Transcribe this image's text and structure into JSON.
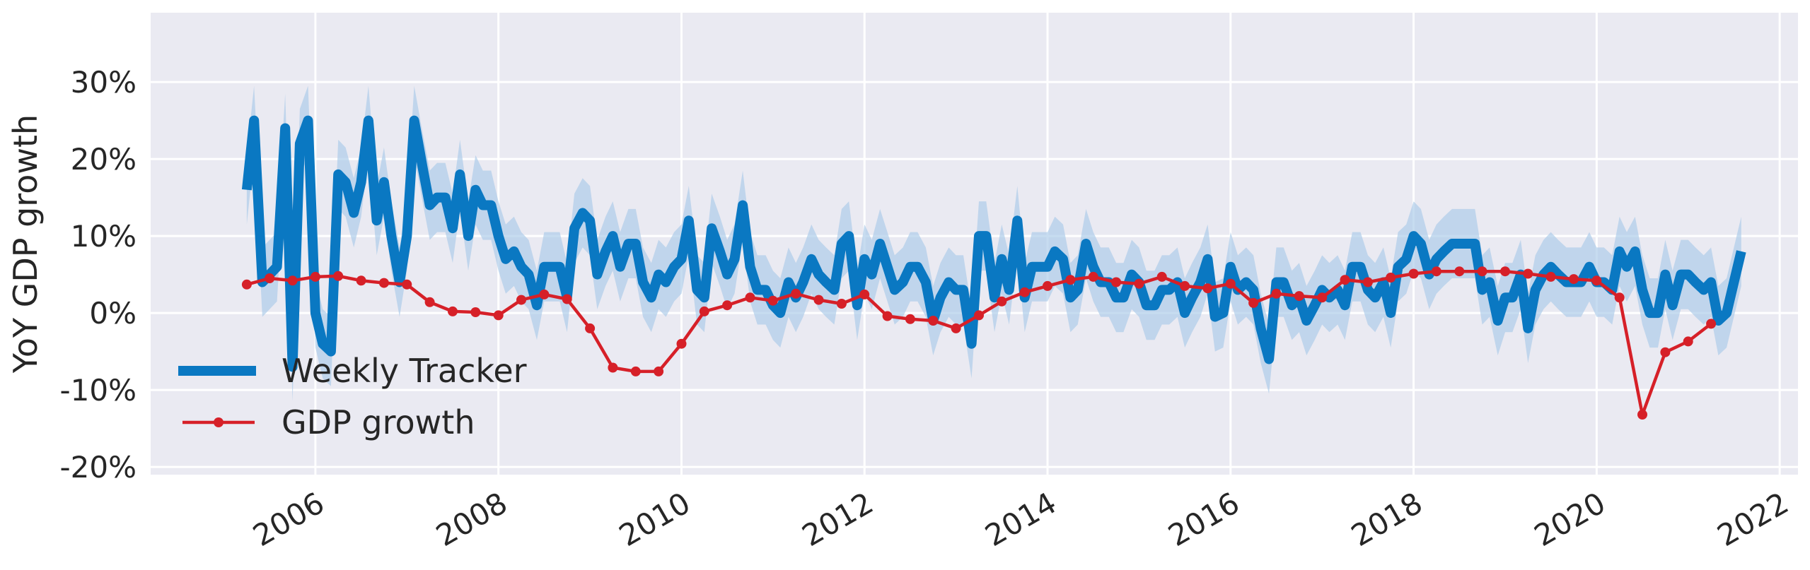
{
  "chart_data": {
    "type": "line",
    "title": "",
    "xlabel": "",
    "ylabel": "YoY GDP growth",
    "xlim": [
      2004.2,
      2022.2
    ],
    "ylim": [
      -21,
      39
    ],
    "x_ticks": [
      2006,
      2008,
      2010,
      2012,
      2014,
      2016,
      2018,
      2020,
      2022
    ],
    "x_tick_labels": [
      "2006",
      "2008",
      "2010",
      "2012",
      "2014",
      "2016",
      "2018",
      "2020",
      "2022"
    ],
    "y_ticks": [
      -20,
      -10,
      0,
      10,
      20,
      30
    ],
    "y_tick_labels": [
      "-20%",
      "-10%",
      "0%",
      "10%",
      "20%",
      "30%"
    ],
    "grid": true,
    "legend_position": "lower-left",
    "colors": {
      "background": "#eaeaf2",
      "grid": "#ffffff",
      "weekly": "#0a78c2",
      "band": "#a9c9e8",
      "gdp": "#d62028"
    },
    "series": [
      {
        "name": "Weekly Tracker",
        "style": "thick-line-with-band",
        "band_halfwidth": 4.5,
        "points": [
          [
            2005.25,
            16
          ],
          [
            2005.33,
            25
          ],
          [
            2005.42,
            4
          ],
          [
            2005.5,
            5
          ],
          [
            2005.58,
            6
          ],
          [
            2005.67,
            24
          ],
          [
            2005.75,
            -7
          ],
          [
            2005.83,
            22
          ],
          [
            2005.92,
            25
          ],
          [
            2006.0,
            0
          ],
          [
            2006.08,
            -4
          ],
          [
            2006.17,
            -5
          ],
          [
            2006.25,
            18
          ],
          [
            2006.33,
            17
          ],
          [
            2006.42,
            13
          ],
          [
            2006.5,
            17
          ],
          [
            2006.58,
            25
          ],
          [
            2006.67,
            12
          ],
          [
            2006.75,
            17
          ],
          [
            2006.83,
            10
          ],
          [
            2006.92,
            4
          ],
          [
            2007.0,
            10
          ],
          [
            2007.08,
            25
          ],
          [
            2007.17,
            19
          ],
          [
            2007.25,
            14
          ],
          [
            2007.33,
            15
          ],
          [
            2007.42,
            15
          ],
          [
            2007.5,
            11
          ],
          [
            2007.58,
            18
          ],
          [
            2007.67,
            10
          ],
          [
            2007.75,
            16
          ],
          [
            2007.83,
            14
          ],
          [
            2007.92,
            14
          ],
          [
            2008.0,
            10
          ],
          [
            2008.08,
            7
          ],
          [
            2008.17,
            8
          ],
          [
            2008.25,
            6
          ],
          [
            2008.33,
            5
          ],
          [
            2008.42,
            1
          ],
          [
            2008.5,
            6
          ],
          [
            2008.58,
            6
          ],
          [
            2008.67,
            6
          ],
          [
            2008.75,
            2
          ],
          [
            2008.83,
            11
          ],
          [
            2008.92,
            13
          ],
          [
            2009.0,
            12
          ],
          [
            2009.08,
            5
          ],
          [
            2009.17,
            8
          ],
          [
            2009.25,
            10
          ],
          [
            2009.33,
            6
          ],
          [
            2009.42,
            9
          ],
          [
            2009.5,
            9
          ],
          [
            2009.58,
            4
          ],
          [
            2009.67,
            2
          ],
          [
            2009.75,
            5
          ],
          [
            2009.83,
            4
          ],
          [
            2009.92,
            6
          ],
          [
            2010.0,
            7
          ],
          [
            2010.08,
            12
          ],
          [
            2010.17,
            3
          ],
          [
            2010.25,
            2
          ],
          [
            2010.33,
            11
          ],
          [
            2010.42,
            8
          ],
          [
            2010.5,
            5
          ],
          [
            2010.58,
            7
          ],
          [
            2010.67,
            14
          ],
          [
            2010.75,
            6
          ],
          [
            2010.83,
            3
          ],
          [
            2010.92,
            3
          ],
          [
            2011.0,
            1
          ],
          [
            2011.08,
            0
          ],
          [
            2011.17,
            4
          ],
          [
            2011.25,
            2
          ],
          [
            2011.33,
            4
          ],
          [
            2011.42,
            7
          ],
          [
            2011.5,
            5
          ],
          [
            2011.58,
            4
          ],
          [
            2011.67,
            3
          ],
          [
            2011.75,
            9
          ],
          [
            2011.83,
            10
          ],
          [
            2011.92,
            1
          ],
          [
            2012.0,
            7
          ],
          [
            2012.08,
            5
          ],
          [
            2012.17,
            9
          ],
          [
            2012.25,
            6
          ],
          [
            2012.33,
            3
          ],
          [
            2012.42,
            4
          ],
          [
            2012.5,
            6
          ],
          [
            2012.58,
            6
          ],
          [
            2012.67,
            4
          ],
          [
            2012.75,
            -1
          ],
          [
            2012.83,
            2
          ],
          [
            2012.92,
            4
          ],
          [
            2013.0,
            3
          ],
          [
            2013.08,
            3
          ],
          [
            2013.17,
            -4
          ],
          [
            2013.25,
            10
          ],
          [
            2013.33,
            10
          ],
          [
            2013.42,
            2
          ],
          [
            2013.5,
            7
          ],
          [
            2013.58,
            3
          ],
          [
            2013.67,
            12
          ],
          [
            2013.75,
            2
          ],
          [
            2013.83,
            6
          ],
          [
            2013.92,
            6
          ],
          [
            2014.0,
            6
          ],
          [
            2014.08,
            8
          ],
          [
            2014.17,
            7
          ],
          [
            2014.25,
            2
          ],
          [
            2014.33,
            3
          ],
          [
            2014.42,
            9
          ],
          [
            2014.5,
            6
          ],
          [
            2014.58,
            4
          ],
          [
            2014.67,
            4
          ],
          [
            2014.75,
            2
          ],
          [
            2014.83,
            2
          ],
          [
            2014.92,
            5
          ],
          [
            2015.0,
            4
          ],
          [
            2015.08,
            1
          ],
          [
            2015.17,
            1
          ],
          [
            2015.25,
            3
          ],
          [
            2015.33,
            3
          ],
          [
            2015.42,
            4
          ],
          [
            2015.5,
            0
          ],
          [
            2015.58,
            2
          ],
          [
            2015.67,
            4
          ],
          [
            2015.75,
            7
          ],
          [
            2015.83,
            -0.5
          ],
          [
            2015.92,
            0
          ],
          [
            2016.0,
            6
          ],
          [
            2016.08,
            3
          ],
          [
            2016.17,
            4
          ],
          [
            2016.25,
            3
          ],
          [
            2016.33,
            -2
          ],
          [
            2016.42,
            -6
          ],
          [
            2016.5,
            4
          ],
          [
            2016.58,
            4
          ],
          [
            2016.67,
            1
          ],
          [
            2016.75,
            2
          ],
          [
            2016.83,
            -1
          ],
          [
            2016.92,
            1
          ],
          [
            2017.0,
            3
          ],
          [
            2017.08,
            2
          ],
          [
            2017.17,
            3
          ],
          [
            2017.25,
            1
          ],
          [
            2017.33,
            6
          ],
          [
            2017.42,
            6
          ],
          [
            2017.5,
            3
          ],
          [
            2017.58,
            2
          ],
          [
            2017.67,
            4
          ],
          [
            2017.75,
            0
          ],
          [
            2017.83,
            6
          ],
          [
            2017.92,
            7
          ],
          [
            2018.0,
            10
          ],
          [
            2018.08,
            9
          ],
          [
            2018.17,
            5
          ],
          [
            2018.25,
            7
          ],
          [
            2018.33,
            8
          ],
          [
            2018.42,
            9
          ],
          [
            2018.5,
            9
          ],
          [
            2018.58,
            9
          ],
          [
            2018.67,
            9
          ],
          [
            2018.75,
            3
          ],
          [
            2018.83,
            4
          ],
          [
            2018.92,
            -1
          ],
          [
            2019.0,
            2
          ],
          [
            2019.08,
            2
          ],
          [
            2019.17,
            5
          ],
          [
            2019.25,
            -2
          ],
          [
            2019.33,
            3
          ],
          [
            2019.42,
            5
          ],
          [
            2019.5,
            6
          ],
          [
            2019.58,
            5
          ],
          [
            2019.67,
            4
          ],
          [
            2019.75,
            4
          ],
          [
            2019.83,
            4
          ],
          [
            2019.92,
            6
          ],
          [
            2020.0,
            4
          ],
          [
            2020.08,
            4
          ],
          [
            2020.17,
            3
          ],
          [
            2020.25,
            8
          ],
          [
            2020.33,
            6
          ],
          [
            2020.42,
            8
          ],
          [
            2020.5,
            3
          ],
          [
            2020.58,
            0
          ],
          [
            2020.67,
            0
          ],
          [
            2020.75,
            5
          ],
          [
            2020.83,
            1
          ],
          [
            2020.92,
            5
          ],
          [
            2021.0,
            5
          ],
          [
            2021.08,
            4
          ],
          [
            2021.17,
            3
          ],
          [
            2021.25,
            4
          ],
          [
            2021.33,
            -1
          ],
          [
            2021.42,
            0
          ],
          [
            2021.5,
            4
          ],
          [
            2021.58,
            8
          ]
        ]
      },
      {
        "name": "GDP growth",
        "style": "line-with-markers",
        "points": [
          [
            2005.25,
            3.7
          ],
          [
            2005.5,
            4.5
          ],
          [
            2005.75,
            4.2
          ],
          [
            2006.0,
            4.7
          ],
          [
            2006.25,
            4.8
          ],
          [
            2006.5,
            4.2
          ],
          [
            2006.75,
            3.9
          ],
          [
            2007.0,
            3.7
          ],
          [
            2007.25,
            1.4
          ],
          [
            2007.5,
            0.2
          ],
          [
            2007.75,
            0.1
          ],
          [
            2008.0,
            -0.3
          ],
          [
            2008.25,
            1.7
          ],
          [
            2008.5,
            2.4
          ],
          [
            2008.75,
            1.8
          ],
          [
            2009.0,
            -2.0
          ],
          [
            2009.25,
            -7.1
          ],
          [
            2009.5,
            -7.6
          ],
          [
            2009.75,
            -7.6
          ],
          [
            2010.0,
            -4.0
          ],
          [
            2010.25,
            0.2
          ],
          [
            2010.5,
            1.0
          ],
          [
            2010.75,
            2.0
          ],
          [
            2011.0,
            1.6
          ],
          [
            2011.25,
            2.5
          ],
          [
            2011.5,
            1.7
          ],
          [
            2011.75,
            1.2
          ],
          [
            2012.0,
            2.4
          ],
          [
            2012.25,
            -0.4
          ],
          [
            2012.5,
            -0.8
          ],
          [
            2012.75,
            -1.0
          ],
          [
            2013.0,
            -2.0
          ],
          [
            2013.25,
            -0.3
          ],
          [
            2013.5,
            1.5
          ],
          [
            2013.75,
            2.7
          ],
          [
            2014.0,
            3.5
          ],
          [
            2014.25,
            4.3
          ],
          [
            2014.5,
            4.7
          ],
          [
            2014.75,
            4.0
          ],
          [
            2015.0,
            3.8
          ],
          [
            2015.25,
            4.7
          ],
          [
            2015.5,
            3.5
          ],
          [
            2015.75,
            3.2
          ],
          [
            2016.0,
            3.8
          ],
          [
            2016.25,
            1.3
          ],
          [
            2016.5,
            2.5
          ],
          [
            2016.75,
            2.2
          ],
          [
            2017.0,
            2.0
          ],
          [
            2017.25,
            4.3
          ],
          [
            2017.5,
            4.0
          ],
          [
            2017.75,
            4.6
          ],
          [
            2018.0,
            5.1
          ],
          [
            2018.25,
            5.4
          ],
          [
            2018.5,
            5.4
          ],
          [
            2018.75,
            5.4
          ],
          [
            2019.0,
            5.4
          ],
          [
            2019.25,
            5.1
          ],
          [
            2019.5,
            4.7
          ],
          [
            2019.75,
            4.4
          ],
          [
            2020.0,
            4.2
          ],
          [
            2020.25,
            2.0
          ],
          [
            2020.5,
            -13.2
          ],
          [
            2020.75,
            -5.1
          ],
          [
            2021.0,
            -3.7
          ],
          [
            2021.25,
            -1.4
          ]
        ]
      }
    ]
  }
}
